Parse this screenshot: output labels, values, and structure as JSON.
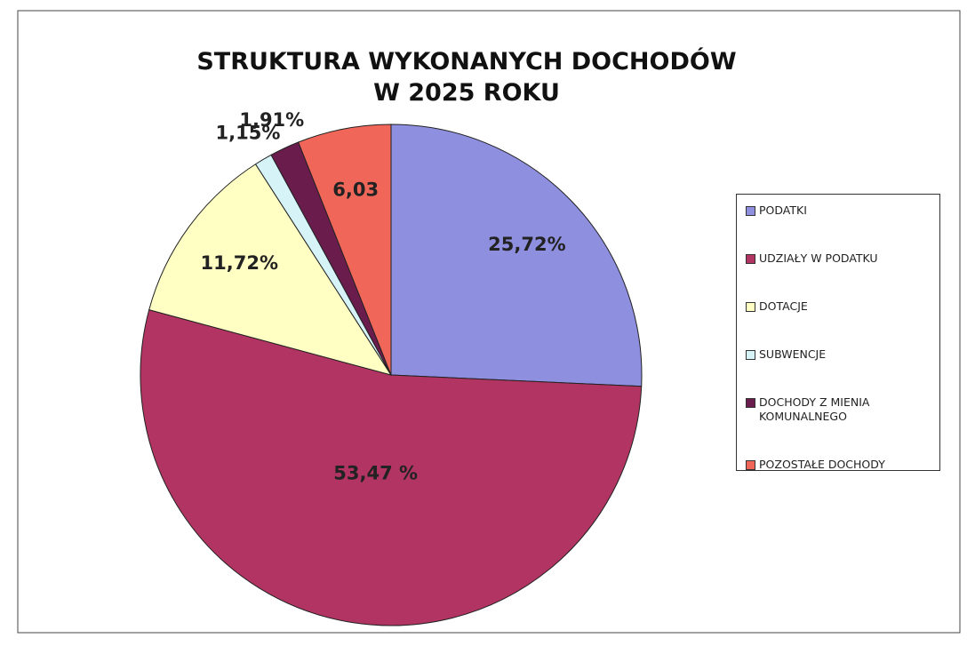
{
  "chart_data": {
    "type": "pie",
    "title": [
      "STRUKTURA WYKONANYCH DOCHODÓW",
      "W 2025 ROKU"
    ],
    "categories": [
      "PODATKI",
      "UDZIAŁY W PODATKU",
      "DOTACJE",
      "SUBWENCJE",
      "DOCHODY Z MIENIA KOMUNALNEGO",
      "POZOSTAŁE DOCHODY"
    ],
    "values": [
      25.72,
      53.47,
      11.72,
      1.15,
      1.91,
      6.03
    ],
    "value_labels": [
      "25,72%",
      "53,47 %",
      "11,72%",
      "1,15%",
      "1,91%",
      "6,03"
    ],
    "colors": [
      "#8f8fe0",
      "#b23462",
      "#ffffc4",
      "#d6f3f8",
      "#6a1c4c",
      "#f0675a"
    ],
    "legend": "right"
  }
}
